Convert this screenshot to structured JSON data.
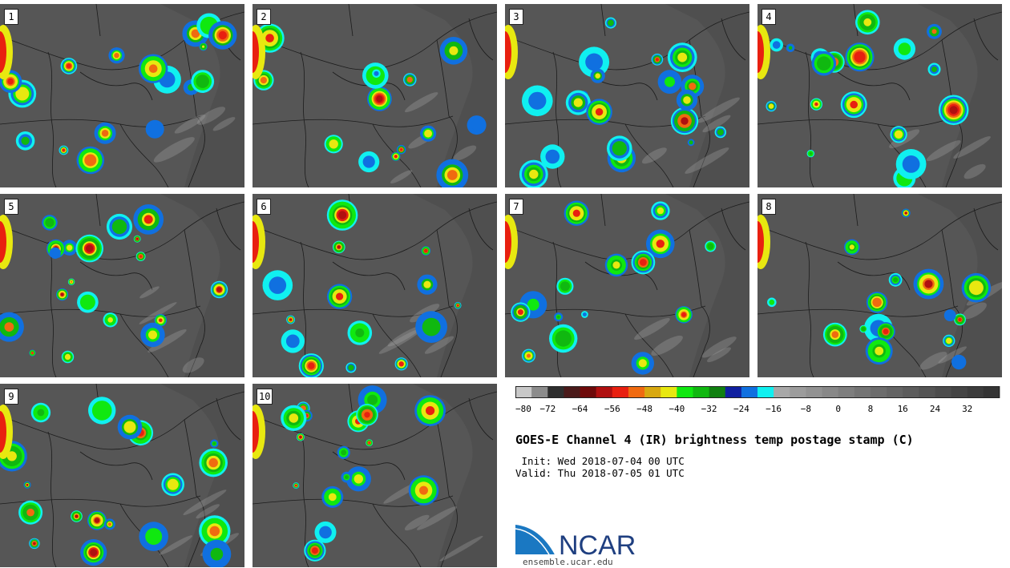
{
  "panels": [
    {
      "label": "1",
      "seed": 11
    },
    {
      "label": "2",
      "seed": 27
    },
    {
      "label": "3",
      "seed": 43
    },
    {
      "label": "4",
      "seed": 59
    },
    {
      "label": "5",
      "seed": 71
    },
    {
      "label": "6",
      "seed": 83
    },
    {
      "label": "7",
      "seed": 97
    },
    {
      "label": "8",
      "seed": 109
    },
    {
      "label": "9",
      "seed": 121
    },
    {
      "label": "10",
      "seed": 137
    }
  ],
  "colorbar": {
    "min": -80,
    "max": 40,
    "step": 4,
    "tick_labels": [
      "−80",
      "−72",
      "−64",
      "−56",
      "−48",
      "−40",
      "−32",
      "−24",
      "−16",
      "−8",
      "0",
      "8",
      "16",
      "24",
      "32"
    ],
    "colors": [
      "#c8c8c8",
      "#8c8c8c",
      "#2e2e2e",
      "#4a1a1a",
      "#6e0a0a",
      "#b01010",
      "#e82010",
      "#f06a10",
      "#d8a810",
      "#e8e810",
      "#10e810",
      "#10b810",
      "#108010",
      "#1020a0",
      "#1070e0",
      "#10f0f0",
      "#a8a8a8",
      "#9c9c9c",
      "#929292",
      "#888888",
      "#7e7e7e",
      "#747474",
      "#6c6c6c",
      "#646464",
      "#5c5c5c",
      "#545454",
      "#4c4c4c",
      "#444444",
      "#3c3c3c",
      "#343434"
    ]
  },
  "title": "GOES-E Channel 4 (IR) brightness temp postage stamp (C)",
  "init": " Init: Wed 2018-07-04 00 UTC",
  "valid": "Valid: Thu 2018-07-05 01 UTC",
  "logo": {
    "text": "NCAR",
    "url": "ensemble.ucar.edu"
  }
}
